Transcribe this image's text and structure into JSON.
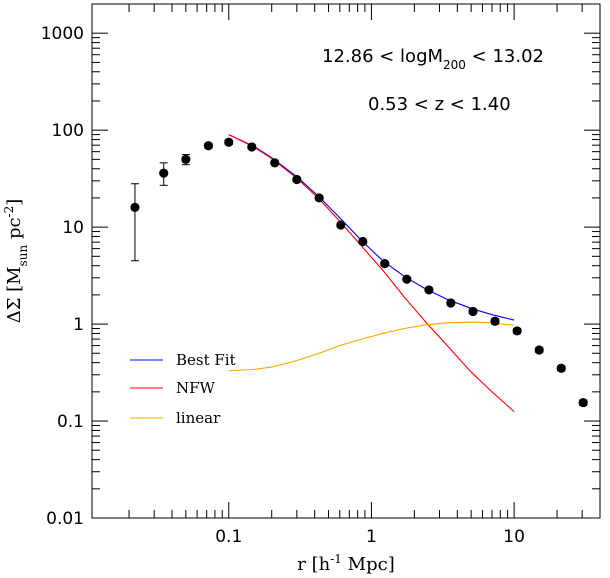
{
  "chart_data": {
    "type": "scatter",
    "xscale": "log",
    "yscale": "log",
    "xlim": [
      0.011,
      40
    ],
    "ylim": [
      0.01,
      2000
    ],
    "xlabel": "r [h^{-1} Mpc]",
    "ylabel": "ΔΣ [M_{sun} pc^{-2}]",
    "xticks": [
      {
        "value": 0.1,
        "label": "0.1"
      },
      {
        "value": 1,
        "label": "1"
      },
      {
        "value": 10,
        "label": "10"
      }
    ],
    "yticks": [
      {
        "value": 0.01,
        "label": "0.01"
      },
      {
        "value": 0.1,
        "label": "0.1"
      },
      {
        "value": 1,
        "label": "1"
      },
      {
        "value": 10,
        "label": "10"
      },
      {
        "value": 100,
        "label": "100"
      },
      {
        "value": 1000,
        "label": "1000"
      }
    ],
    "annotations": [
      {
        "text": "12.86 < logM_{200} < 13.02"
      },
      {
        "text": "0.53 < z < 1.40"
      }
    ],
    "legend_position": "lower-left",
    "points": [
      {
        "x": 0.022,
        "y": 16,
        "ylo": 4.5,
        "yhi": 28
      },
      {
        "x": 0.035,
        "y": 36,
        "ylo": 27,
        "yhi": 46
      },
      {
        "x": 0.05,
        "y": 50,
        "ylo": 44,
        "yhi": 56
      },
      {
        "x": 0.072,
        "y": 69,
        "ylo": 65,
        "yhi": 73
      },
      {
        "x": 0.1,
        "y": 75,
        "ylo": 71,
        "yhi": 79
      },
      {
        "x": 0.145,
        "y": 67,
        "ylo": 64,
        "yhi": 70
      },
      {
        "x": 0.21,
        "y": 46,
        "ylo": 44,
        "yhi": 48
      },
      {
        "x": 0.3,
        "y": 31,
        "ylo": 29.5,
        "yhi": 32.5
      },
      {
        "x": 0.43,
        "y": 20,
        "ylo": 19,
        "yhi": 21
      },
      {
        "x": 0.61,
        "y": 10.5,
        "ylo": 10,
        "yhi": 11
      },
      {
        "x": 0.87,
        "y": 7.1,
        "ylo": 6.8,
        "yhi": 7.4
      },
      {
        "x": 1.24,
        "y": 4.2,
        "ylo": 4.0,
        "yhi": 4.4
      },
      {
        "x": 1.77,
        "y": 2.9,
        "ylo": 2.8,
        "yhi": 3.0
      },
      {
        "x": 2.53,
        "y": 2.25,
        "ylo": 2.15,
        "yhi": 2.35
      },
      {
        "x": 3.6,
        "y": 1.65,
        "ylo": 1.57,
        "yhi": 1.73
      },
      {
        "x": 5.15,
        "y": 1.35,
        "ylo": 1.28,
        "yhi": 1.42
      },
      {
        "x": 7.35,
        "y": 1.07,
        "ylo": 1.0,
        "yhi": 1.14
      },
      {
        "x": 10.5,
        "y": 0.85,
        "ylo": 0.8,
        "yhi": 0.9
      },
      {
        "x": 15,
        "y": 0.54,
        "ylo": 0.51,
        "yhi": 0.57
      },
      {
        "x": 21.4,
        "y": 0.35,
        "ylo": 0.33,
        "yhi": 0.37
      },
      {
        "x": 30.5,
        "y": 0.155,
        "ylo": 0.145,
        "yhi": 0.165
      }
    ],
    "series": [
      {
        "name": "Best Fit",
        "color": "#0000ff",
        "x": [
          0.1,
          0.15,
          0.2,
          0.3,
          0.43,
          0.6,
          0.85,
          1.2,
          1.7,
          2.4,
          3.4,
          5.0,
          7.0,
          10.0
        ],
        "y": [
          90,
          68,
          52,
          33,
          20.5,
          12.5,
          7.3,
          4.5,
          3.1,
          2.3,
          1.8,
          1.45,
          1.25,
          1.1
        ]
      },
      {
        "name": "NFW",
        "color": "#ff0000",
        "x": [
          0.1,
          0.15,
          0.2,
          0.3,
          0.43,
          0.6,
          0.85,
          1.2,
          1.7,
          2.4,
          3.4,
          5.0,
          7.0,
          10.0
        ],
        "y": [
          90,
          67,
          51,
          32,
          19.5,
          11.5,
          6.4,
          3.6,
          1.9,
          1.05,
          0.6,
          0.32,
          0.2,
          0.125
        ]
      },
      {
        "name": "linear",
        "color": "#ffa500",
        "x": [
          0.1,
          0.15,
          0.2,
          0.3,
          0.43,
          0.6,
          0.85,
          1.2,
          1.7,
          2.4,
          3.4,
          5.0,
          7.0,
          10.0
        ],
        "y": [
          0.33,
          0.34,
          0.36,
          0.42,
          0.5,
          0.6,
          0.7,
          0.8,
          0.9,
          0.98,
          1.03,
          1.05,
          1.03,
          0.97
        ]
      }
    ]
  }
}
